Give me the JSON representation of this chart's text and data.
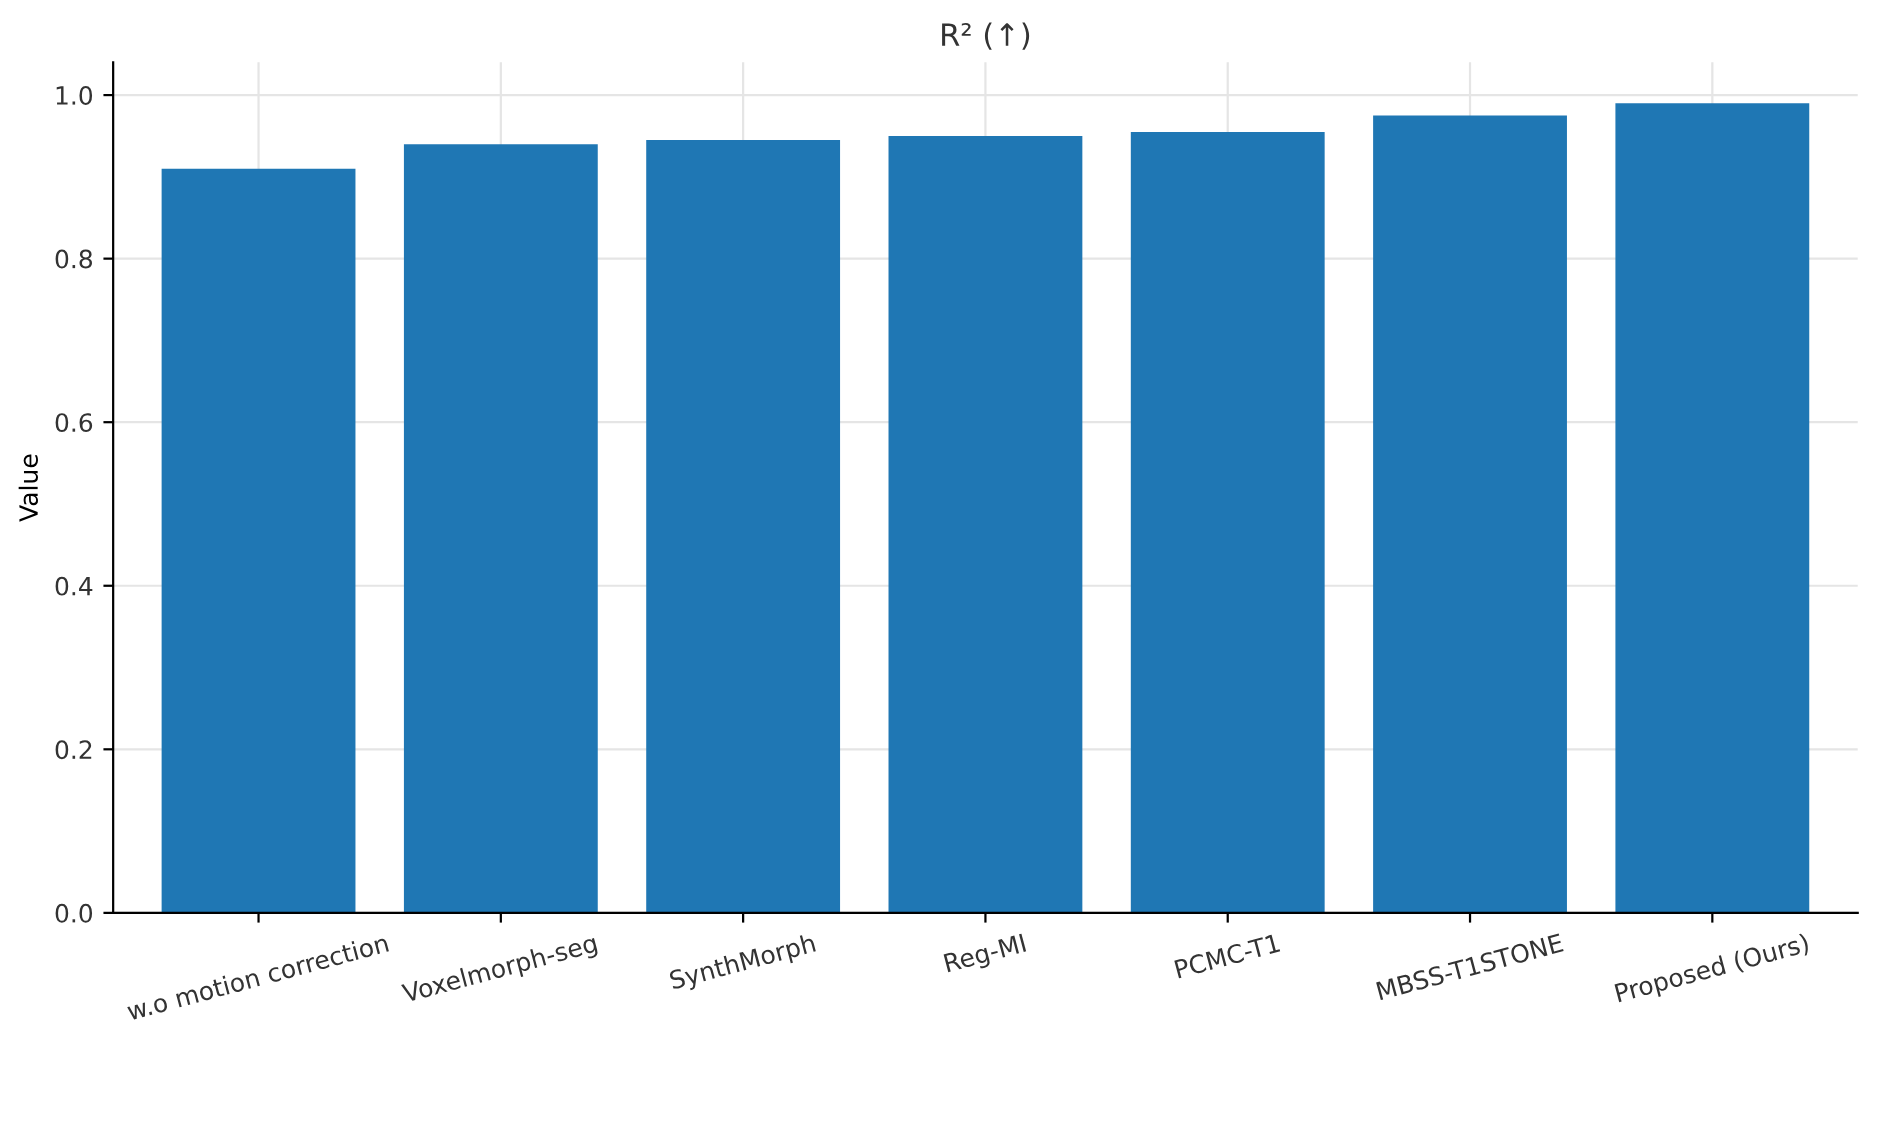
{
  "chart_data": {
    "type": "bar",
    "title": "R² (↑)",
    "ylabel": "Value",
    "categories": [
      "w.o motion correction",
      "Voxelmorph-seg",
      "SynthMorph",
      "Reg-MI",
      "PCMC-T1",
      "MBSS-T1STONE",
      "Proposed (Ours)"
    ],
    "values": [
      0.91,
      0.94,
      0.945,
      0.95,
      0.955,
      0.975,
      0.99
    ],
    "color": "#1f77b4",
    "ylim": [
      0,
      1.04
    ],
    "yticks": [
      {
        "value": 0,
        "label": "0.0"
      },
      0.2,
      0.4,
      0.6,
      0.8,
      {
        "value": 1,
        "label": "1.0"
      }
    ],
    "grid": true
  }
}
